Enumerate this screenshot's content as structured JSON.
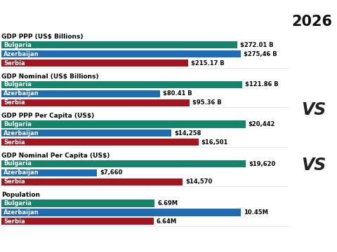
{
  "header": {
    "year": "2026",
    "separators": [
      "VS",
      "VS"
    ]
  },
  "chart_data": [
    {
      "type": "bar",
      "orientation": "horizontal",
      "title": "GDP PPP (US$ Billions)",
      "categories": [
        "Bulgaria",
        "Azerbaijan",
        "Serbia"
      ],
      "values": [
        272.01,
        275.46,
        215.17
      ],
      "value_labels": [
        "$272.01 B",
        "$275,46 B",
        "$215.17 B"
      ],
      "colors": [
        "#16846a",
        "#1f6cb0",
        "#a3161f"
      ],
      "xlim": [
        0,
        330
      ],
      "xticks": [],
      "tick_labels": false,
      "data_labels": true
    },
    {
      "type": "bar",
      "orientation": "horizontal",
      "title": "GDP Nominal (US$ Billions)",
      "categories": [
        "Bulgaria",
        "Azerbaijan",
        "Serbia"
      ],
      "values": [
        121.86,
        80.41,
        95.36
      ],
      "value_labels": [
        "$121.86 B",
        "$80.41 B",
        "$95.36 B"
      ],
      "colors": [
        "#16846a",
        "#1f6cb0",
        "#a3161f"
      ],
      "xlim": [
        0,
        145
      ],
      "xticks": [],
      "tick_labels": false,
      "data_labels": true
    },
    {
      "type": "bar",
      "orientation": "horizontal",
      "title": "GDP PPP Per Capita (US$)",
      "categories": [
        "Bulgaria",
        "Azerbaijan",
        "Serbia"
      ],
      "values": [
        20442,
        14258,
        16501
      ],
      "value_labels": [
        "$20,442",
        "$14,258",
        "$16,501"
      ],
      "colors": [
        "#16846a",
        "#1f6cb0",
        "#a3161f"
      ],
      "xlim": [
        0,
        24000
      ],
      "xticks": [],
      "tick_labels": false,
      "data_labels": true
    },
    {
      "type": "bar",
      "orientation": "horizontal",
      "title": "GDP Nominal Per Capita (US$)",
      "categories": [
        "Bulgaria",
        "Azerbaijan",
        "Serbia"
      ],
      "values": [
        19620,
        7660,
        14570
      ],
      "value_labels": [
        "$19,620",
        "$7,660",
        "$14,570"
      ],
      "colors": [
        "#16846a",
        "#1f6cb0",
        "#a3161f"
      ],
      "xlim": [
        0,
        23000
      ],
      "xticks": [],
      "tick_labels": false,
      "data_labels": true
    },
    {
      "type": "bar",
      "orientation": "horizontal",
      "title": "Population",
      "categories": [
        "Bulgaria",
        "Azerbaijan",
        "Serbia"
      ],
      "values": [
        6.69,
        10.45,
        6.64
      ],
      "value_labels": [
        "6.69M",
        "10.45M",
        "6.64M"
      ],
      "colors": [
        "#16846a",
        "#1f6cb0",
        "#a3161f"
      ],
      "xlim": [
        0,
        12.5
      ],
      "xticks": [],
      "tick_labels": false,
      "data_labels": true
    }
  ]
}
